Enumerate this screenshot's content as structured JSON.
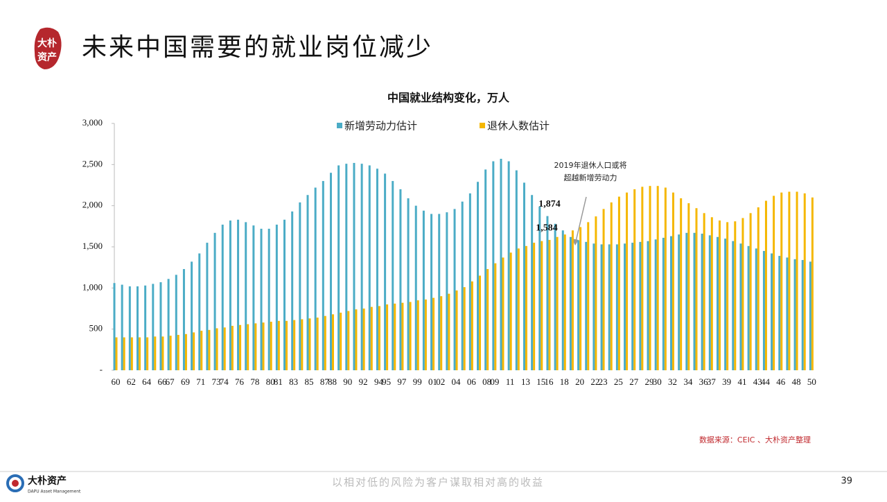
{
  "header": {
    "title": "未来中国需要的就业岗位减少",
    "stamp": [
      "大朴",
      "资产"
    ]
  },
  "chart_data": {
    "type": "bar",
    "title": "中国就业结构变化，万人",
    "categories": [
      "60",
      null,
      "62",
      null,
      "64",
      null,
      "66",
      "67",
      null,
      "69",
      null,
      "71",
      null,
      "73",
      "74",
      null,
      "76",
      null,
      "78",
      null,
      "80",
      "81",
      null,
      "83",
      null,
      "85",
      null,
      "87",
      "88",
      null,
      "90",
      null,
      "92",
      null,
      "94",
      "95",
      null,
      "97",
      null,
      "99",
      null,
      "01",
      "02",
      null,
      "04",
      null,
      "06",
      null,
      "08",
      "09",
      null,
      "11",
      null,
      "13",
      null,
      "15",
      "16",
      null,
      "18",
      null,
      "20",
      null,
      "22",
      "23",
      null,
      "25",
      null,
      "27",
      null,
      "29",
      "30",
      null,
      "32",
      null,
      "34",
      null,
      "36",
      "37",
      null,
      "39",
      null,
      "41",
      null,
      "43",
      "44",
      null,
      "46",
      null,
      "48",
      null,
      "50"
    ],
    "series": [
      {
        "name": "新增劳动力估计",
        "color": "#4bacc6",
        "values": [
          1060,
          1040,
          1020,
          1020,
          1030,
          1050,
          1070,
          1110,
          1160,
          1230,
          1320,
          1420,
          1550,
          1670,
          1770,
          1820,
          1830,
          1800,
          1760,
          1720,
          1720,
          1770,
          1830,
          1930,
          2040,
          2130,
          2220,
          2300,
          2400,
          2490,
          2510,
          2520,
          2510,
          2490,
          2450,
          2390,
          2300,
          2200,
          2090,
          2000,
          1940,
          1900,
          1900,
          1920,
          1960,
          2050,
          2150,
          2290,
          2440,
          2540,
          2570,
          2540,
          2430,
          2280,
          2130,
          1990,
          1874,
          1780,
          1700,
          1620,
          1580,
          1560,
          1540,
          1530,
          1530,
          1530,
          1540,
          1550,
          1560,
          1570,
          1590,
          1610,
          1630,
          1650,
          1670,
          1670,
          1660,
          1640,
          1620,
          1600,
          1570,
          1540,
          1510,
          1480,
          1450,
          1420,
          1390,
          1370,
          1350,
          1340,
          1320
        ],
        "value_labels": [
          null,
          null,
          null,
          null,
          null,
          null,
          null,
          null,
          null,
          null,
          null,
          null,
          null,
          null,
          null,
          null,
          null,
          null,
          null,
          null,
          null,
          null,
          null,
          null,
          null,
          null,
          null,
          null,
          null,
          null,
          null,
          null,
          null,
          null,
          null,
          null,
          null,
          null,
          null,
          null,
          null,
          null,
          null,
          null,
          null,
          null,
          null,
          null,
          null,
          null,
          null,
          null,
          null,
          null,
          null,
          null,
          "1,874",
          null,
          null,
          null,
          null,
          null,
          null,
          null,
          null,
          null,
          null,
          null,
          null,
          null,
          null,
          null,
          null,
          null,
          null,
          null,
          null,
          null,
          null,
          null,
          null,
          null,
          null,
          null,
          null,
          null,
          null,
          null,
          null,
          null,
          null
        ]
      },
      {
        "name": "退休人数估计",
        "color": "#f5b700",
        "values": [
          400,
          400,
          400,
          400,
          400,
          410,
          410,
          420,
          430,
          440,
          460,
          480,
          490,
          510,
          520,
          540,
          550,
          560,
          570,
          580,
          590,
          600,
          600,
          610,
          620,
          630,
          640,
          660,
          680,
          700,
          720,
          740,
          750,
          770,
          780,
          800,
          810,
          820,
          830,
          850,
          860,
          880,
          900,
          930,
          970,
          1010,
          1080,
          1150,
          1230,
          1300,
          1370,
          1430,
          1480,
          1510,
          1550,
          1570,
          1584,
          1620,
          1650,
          1700,
          1740,
          1800,
          1870,
          1960,
          2040,
          2110,
          2160,
          2200,
          2230,
          2240,
          2240,
          2220,
          2160,
          2090,
          2030,
          1970,
          1910,
          1860,
          1820,
          1800,
          1810,
          1850,
          1910,
          1980,
          2060,
          2120,
          2160,
          2170,
          2170,
          2150,
          2100
        ],
        "value_labels": [
          null,
          null,
          null,
          null,
          null,
          null,
          null,
          null,
          null,
          null,
          null,
          null,
          null,
          null,
          null,
          null,
          null,
          null,
          null,
          null,
          null,
          null,
          null,
          null,
          null,
          null,
          null,
          null,
          null,
          null,
          null,
          null,
          null,
          null,
          null,
          null,
          null,
          null,
          null,
          null,
          null,
          null,
          null,
          null,
          null,
          null,
          null,
          null,
          null,
          null,
          null,
          null,
          null,
          null,
          null,
          null,
          "1,584",
          null,
          null,
          null,
          null,
          null,
          null,
          null,
          null,
          null,
          null,
          null,
          null,
          null,
          null,
          null,
          null,
          null,
          null,
          null,
          null,
          null,
          null,
          null,
          null,
          null,
          null,
          null,
          null,
          null,
          null,
          null,
          null,
          null,
          null
        ]
      }
    ],
    "ylim": [
      0,
      3000
    ],
    "yticks": [
      {
        "value": 0,
        "label": "-"
      },
      500,
      {
        "value": 1000,
        "label": "1,000"
      },
      {
        "value": 1500,
        "label": "1,500"
      },
      {
        "value": 2000,
        "label": "2,000"
      },
      {
        "value": 2500,
        "label": "2,500"
      },
      {
        "value": 3000,
        "label": "3,000"
      }
    ],
    "legend": "top",
    "annotation": [
      "2019年退休人口或将",
      "超越新增劳动力"
    ],
    "source": "数据来源：CEIC 、大朴资产整理"
  },
  "footer": {
    "logo": "大朴资产",
    "logo_sub": "DAPU Asset Management",
    "slogan": "以相对低的风险为客户谋取相对高的收益",
    "page": "39"
  }
}
